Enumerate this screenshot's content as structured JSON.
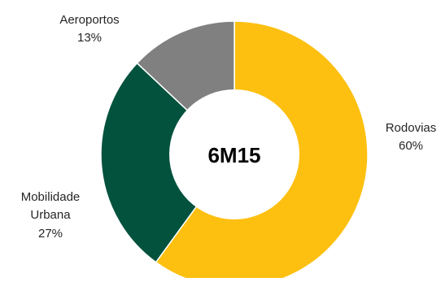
{
  "chart_data": {
    "type": "pie",
    "variant": "donut",
    "center_label": "6M15",
    "slices": [
      {
        "name": "Rodovias",
        "value": 60,
        "value_label": "60%",
        "color": "#FDC010"
      },
      {
        "name": "Mobilidade Urbana",
        "label_lines": [
          "Mobilidade",
          "Urbana"
        ],
        "value": 27,
        "value_label": "27%",
        "color": "#02523E"
      },
      {
        "name": "Aeroportos",
        "value": 13,
        "value_label": "13%",
        "color": "#808080"
      }
    ],
    "legend": "none"
  }
}
